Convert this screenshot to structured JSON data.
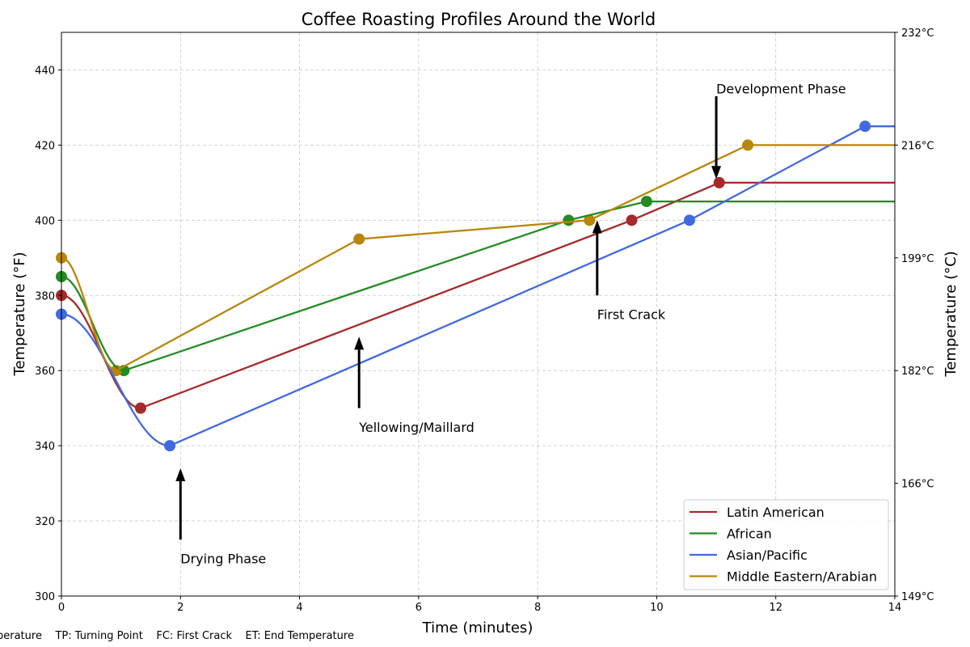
{
  "chart_data": {
    "type": "line",
    "title": "Coffee Roasting Profiles Around the World",
    "xlabel": "Time (minutes)",
    "ylabel": "Temperature (°F)",
    "y2label": "Temperature (°C)",
    "xlim": [
      0,
      14
    ],
    "ylim": [
      300,
      450
    ],
    "x_ticks": [
      0,
      2,
      4,
      6,
      8,
      10,
      12,
      14
    ],
    "y_ticks": [
      300,
      320,
      340,
      360,
      380,
      400,
      420,
      440
    ],
    "y2_ticks": [
      {
        "value": 300,
        "label": "149°C"
      },
      {
        "value": 330,
        "label": "166°C"
      },
      {
        "value": 360,
        "label": "182°C"
      },
      {
        "value": 390,
        "label": "199°C"
      },
      {
        "value": 420,
        "label": "216°C"
      },
      {
        "value": 450,
        "label": "232°C"
      }
    ],
    "grid": true,
    "legend": "lower-right",
    "series": [
      {
        "name": "Latin American",
        "color": "#a52a2a",
        "points": [
          [
            0,
            380
          ],
          [
            1.33,
            350
          ],
          [
            9.58,
            400
          ],
          [
            11.05,
            410
          ]
        ],
        "end": 410
      },
      {
        "name": "African",
        "color": "#228b22",
        "points": [
          [
            0,
            385
          ],
          [
            1.05,
            360
          ],
          [
            8.52,
            400
          ],
          [
            9.83,
            405
          ]
        ],
        "end": 405
      },
      {
        "name": "Asian/Pacific",
        "color": "#4169e1",
        "points": [
          [
            0,
            375
          ],
          [
            1.82,
            340
          ],
          [
            10.55,
            400
          ],
          [
            13.5,
            425
          ]
        ],
        "end": 425
      },
      {
        "name": "Middle Eastern/Arabian",
        "color": "#b8860b",
        "points": [
          [
            0,
            390
          ],
          [
            0.92,
            360
          ],
          [
            5.0,
            395
          ],
          [
            8.87,
            400
          ],
          [
            11.53,
            420
          ]
        ],
        "end": 420
      }
    ],
    "annotations": [
      {
        "text": "Drying Phase",
        "x": 2,
        "y": 310,
        "arrow_tail": 315,
        "arrow_head": 334
      },
      {
        "text": "Yellowing/Maillard",
        "x": 5,
        "y": 345,
        "arrow_tail": 350,
        "arrow_head": 369
      },
      {
        "text": "First Crack",
        "x": 9,
        "y": 375,
        "arrow_tail": 380,
        "arrow_head": 400
      },
      {
        "text": "Development Phase",
        "x": 11,
        "y": 435,
        "arrow_tail": 433,
        "arrow_head": 411
      }
    ]
  },
  "footer": "perature    TP: Turning Point    FC: First Crack    ET: End Temperature"
}
